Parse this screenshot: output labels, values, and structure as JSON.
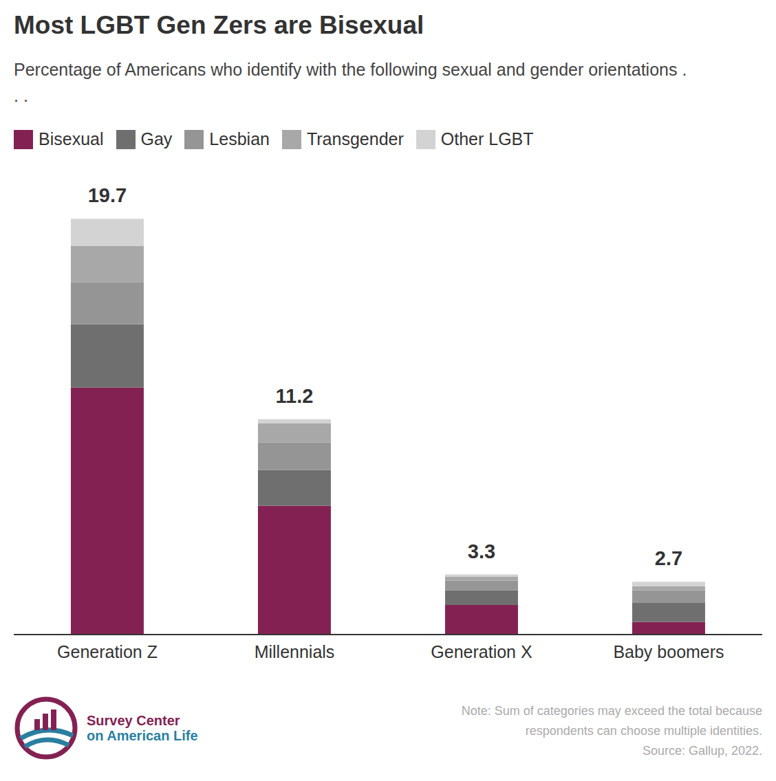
{
  "chart_data": {
    "type": "bar",
    "title": "Most LGBT Gen Zers are Bisexual",
    "subtitle": "Percentage of Americans who identify with the following sexual and gender orientations . . .",
    "categories": [
      "Generation Z",
      "Millennials",
      "Generation X",
      "Baby boomers"
    ],
    "series": [
      {
        "name": "Bisexual",
        "color": "#832252",
        "values": [
          11.7,
          6.1,
          1.4,
          0.6
        ]
      },
      {
        "name": "Gay",
        "color": "#6f6f6f",
        "values": [
          3.0,
          1.7,
          0.7,
          0.9
        ]
      },
      {
        "name": "Lesbian",
        "color": "#959595",
        "values": [
          2.0,
          1.3,
          0.45,
          0.6
        ]
      },
      {
        "name": "Transgender",
        "color": "#a8a8a8",
        "values": [
          1.7,
          0.9,
          0.2,
          0.2
        ]
      },
      {
        "name": "Other LGBT",
        "color": "#d3d3d3",
        "values": [
          1.3,
          0.2,
          0.1,
          0.2
        ]
      }
    ],
    "totals": [
      19.7,
      11.2,
      3.3,
      2.7
    ],
    "stacked": true,
    "legend": "top left",
    "tick_labels": "x",
    "grid": false,
    "ylim": [
      0,
      20
    ],
    "yticks": [
      0,
      20
    ],
    "note": "Note: Sum of categories may exceed the total because respondents can choose multiple identities.",
    "source": "Source: Gallup, 2022.",
    "branding": [
      "Survey Center",
      "on American Life"
    ]
  }
}
